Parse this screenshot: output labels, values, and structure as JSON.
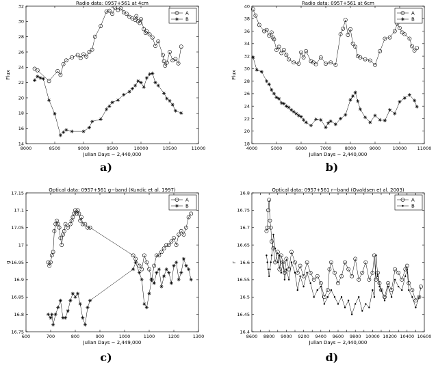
{
  "chart_data": [
    {
      "type": "line",
      "letter": "a)",
      "title": "Radio data: 0957+561 at 4cm",
      "xlabel": "Julian Days − 2,440,000",
      "ylabel": "Flux",
      "xlim": [
        8000,
        11000
      ],
      "ylim": [
        14,
        32
      ],
      "xticks": [
        8000,
        8500,
        9000,
        9500,
        10000,
        10500,
        11000
      ],
      "yticks": [
        14,
        16,
        18,
        20,
        22,
        24,
        26,
        28,
        30,
        32
      ],
      "grid": false,
      "legend_position": "top-right",
      "series": [
        {
          "name": "A",
          "marker": "circle",
          "x": [
            8150,
            8200,
            8400,
            8550,
            8600,
            8650,
            8700,
            8800,
            8900,
            8950,
            9000,
            9050,
            9100,
            9150,
            9200,
            9300,
            9400,
            9450,
            9500,
            9550,
            9600,
            9650,
            9700,
            9750,
            9800,
            9850,
            9900,
            9920,
            9950,
            9980,
            10000,
            10050,
            10080,
            10100,
            10150,
            10200,
            10250,
            10300,
            10380,
            10400,
            10420,
            10450,
            10500,
            10550,
            10600,
            10650,
            10700
          ],
          "y": [
            23.8,
            23.6,
            22.2,
            23.5,
            23.0,
            24.4,
            24.9,
            25.3,
            25.6,
            25.2,
            25.7,
            25.4,
            26.0,
            26.3,
            28.0,
            29.4,
            31.3,
            31.4,
            31.0,
            31.8,
            31.5,
            31.7,
            31.2,
            31.0,
            30.6,
            30.4,
            30.2,
            30.7,
            30.0,
            29.8,
            30.3,
            29.0,
            28.5,
            28.7,
            28.3,
            27.9,
            26.8,
            27.4,
            25.6,
            24.8,
            24.2,
            24.6,
            26.0,
            24.9,
            25.1,
            24.5,
            26.7
          ]
        },
        {
          "name": "B",
          "marker": "star",
          "x": [
            8150,
            8200,
            8250,
            8300,
            8400,
            8500,
            8600,
            8650,
            8700,
            8800,
            9000,
            9100,
            9150,
            9300,
            9400,
            9450,
            9500,
            9600,
            9700,
            9800,
            9850,
            9900,
            9950,
            10000,
            10050,
            10100,
            10150,
            10200,
            10250,
            10300,
            10400,
            10450,
            10500,
            10550,
            10600,
            10700
          ],
          "y": [
            22.3,
            22.8,
            22.6,
            22.5,
            19.7,
            17.9,
            15.1,
            15.5,
            15.8,
            15.6,
            15.6,
            16.1,
            16.9,
            17.2,
            18.5,
            18.9,
            19.4,
            19.7,
            20.4,
            20.8,
            21.2,
            21.6,
            22.2,
            22.0,
            21.4,
            22.6,
            23.1,
            23.2,
            22.0,
            21.6,
            20.6,
            19.9,
            19.6,
            19.1,
            18.3,
            18.0
          ]
        }
      ]
    },
    {
      "type": "line",
      "letter": "b)",
      "title": "Radio data: 0957+561 at 6cm",
      "xlabel": "Julian Days − 2,440,000",
      "ylabel": "Flux",
      "xlim": [
        4000,
        11000
      ],
      "ylim": [
        18,
        40
      ],
      "xticks": [
        4000,
        5000,
        6000,
        7000,
        8000,
        9000,
        10000,
        11000
      ],
      "yticks": [
        18,
        20,
        22,
        24,
        26,
        28,
        30,
        32,
        34,
        36,
        38,
        40
      ],
      "grid": false,
      "legend_position": "top-right",
      "series": [
        {
          "name": "A",
          "marker": "circle",
          "x": [
            4050,
            4150,
            4300,
            4500,
            4600,
            4700,
            4800,
            4850,
            4900,
            5000,
            5100,
            5200,
            5300,
            5400,
            5500,
            5700,
            5900,
            6000,
            6100,
            6200,
            6400,
            6500,
            6600,
            6800,
            7000,
            7200,
            7400,
            7600,
            7700,
            7800,
            7900,
            8000,
            8100,
            8200,
            8300,
            8400,
            8600,
            8800,
            9000,
            9200,
            9400,
            9600,
            9800,
            9900,
            10000,
            10100,
            10200,
            10400,
            10500,
            10600,
            10700
          ],
          "y": [
            39.5,
            38.5,
            37.0,
            36.0,
            36.2,
            35.3,
            35.8,
            35.0,
            34.7,
            33.0,
            33.5,
            32.5,
            33.0,
            32.2,
            31.5,
            31.0,
            30.8,
            32.6,
            31.8,
            32.8,
            31.2,
            31.0,
            30.7,
            31.8,
            30.8,
            31.0,
            30.6,
            35.5,
            36.4,
            37.8,
            35.4,
            36.3,
            34.0,
            33.5,
            32.0,
            31.8,
            31.5,
            31.3,
            30.6,
            32.8,
            34.8,
            35.0,
            36.0,
            37.2,
            36.5,
            35.8,
            35.5,
            34.8,
            33.6,
            32.9,
            33.3
          ]
        },
        {
          "name": "B",
          "marker": "star",
          "x": [
            4050,
            4200,
            4400,
            4600,
            4700,
            4800,
            4900,
            5000,
            5100,
            5200,
            5300,
            5400,
            5500,
            5600,
            5700,
            5800,
            5900,
            6000,
            6100,
            6200,
            6400,
            6600,
            6800,
            7000,
            7100,
            7200,
            7400,
            7600,
            7800,
            8000,
            8100,
            8200,
            8300,
            8400,
            8600,
            8800,
            9000,
            9200,
            9400,
            9600,
            9800,
            10000,
            10200,
            10400,
            10600,
            10700
          ],
          "y": [
            31.8,
            29.8,
            29.5,
            28.0,
            27.5,
            26.6,
            26.0,
            25.4,
            25.2,
            24.5,
            24.4,
            24.0,
            23.8,
            23.4,
            23.1,
            22.8,
            22.5,
            22.3,
            21.8,
            21.4,
            20.9,
            21.9,
            21.8,
            20.6,
            21.3,
            21.6,
            21.1,
            22.0,
            22.6,
            25.0,
            25.6,
            26.2,
            24.8,
            23.5,
            22.2,
            21.4,
            22.5,
            21.8,
            21.7,
            23.4,
            22.8,
            24.7,
            25.3,
            25.8,
            24.9,
            23.9
          ]
        }
      ]
    },
    {
      "type": "line",
      "letter": "c)",
      "title": "Optical data: 0957+561 g−band  (Kundic et al. 1997)",
      "xlabel": "Julian Days − 2,449,000",
      "ylabel": "g",
      "xlim": [
        600,
        1300
      ],
      "ylim": [
        16.75,
        17.15
      ],
      "xticks": [
        600,
        700,
        800,
        900,
        1000,
        1100,
        1200,
        1300
      ],
      "yticks": [
        16.75,
        16.8,
        16.85,
        16.9,
        16.95,
        17,
        17.05,
        17.1,
        17.15
      ],
      "ytick_labels": [
        "16.75",
        "16.8",
        "16.85",
        "16.9",
        "16.95",
        "17",
        "17.05",
        "17.1",
        "17.15"
      ],
      "grid": false,
      "legend_position": "top-right",
      "series": [
        {
          "name": "A",
          "marker": "circle",
          "x": [
            690,
            695,
            700,
            705,
            710,
            715,
            720,
            725,
            730,
            735,
            740,
            745,
            750,
            755,
            760,
            770,
            780,
            785,
            790,
            795,
            800,
            805,
            810,
            815,
            820,
            825,
            830,
            840,
            850,
            860,
            1035,
            1045,
            1060,
            1070,
            1080,
            1090,
            1100,
            1110,
            1120,
            1130,
            1140,
            1150,
            1160,
            1170,
            1180,
            1190,
            1200,
            1210,
            1220,
            1230,
            1240,
            1250,
            1260,
            1270
          ],
          "y": [
            16.95,
            16.94,
            16.95,
            16.97,
            16.98,
            17.04,
            17.06,
            17.07,
            17.06,
            17.05,
            17.02,
            17.0,
            17.03,
            17.04,
            17.06,
            17.05,
            17.06,
            17.07,
            17.08,
            17.09,
            17.1,
            17.09,
            17.1,
            17.09,
            17.07,
            17.08,
            17.06,
            17.06,
            17.05,
            17.05,
            16.97,
            16.96,
            16.94,
            16.93,
            16.97,
            16.95,
            16.93,
            16.9,
            16.94,
            16.97,
            16.97,
            16.98,
            16.99,
            17.0,
            17.0,
            17.01,
            17.02,
            17.0,
            17.03,
            17.04,
            17.03,
            17.05,
            17.08,
            17.09
          ]
        },
        {
          "name": "B",
          "marker": "star",
          "x": [
            690,
            700,
            705,
            710,
            720,
            730,
            740,
            750,
            760,
            770,
            780,
            790,
            800,
            810,
            820,
            830,
            840,
            850,
            860,
            1035,
            1045,
            1060,
            1070,
            1080,
            1090,
            1100,
            1110,
            1120,
            1130,
            1140,
            1150,
            1160,
            1170,
            1180,
            1190,
            1200,
            1210,
            1220,
            1230,
            1240,
            1250,
            1260,
            1270
          ],
          "y": [
            16.8,
            16.79,
            16.8,
            16.77,
            16.8,
            16.82,
            16.84,
            16.79,
            16.79,
            16.81,
            16.84,
            16.86,
            16.85,
            16.86,
            16.83,
            16.79,
            16.77,
            16.82,
            16.84,
            16.93,
            16.95,
            16.92,
            16.9,
            16.83,
            16.82,
            16.86,
            16.9,
            16.89,
            16.92,
            16.93,
            16.88,
            16.91,
            16.93,
            16.92,
            16.89,
            16.94,
            16.95,
            16.9,
            16.92,
            16.96,
            16.94,
            16.93,
            16.9
          ]
        }
      ]
    },
    {
      "type": "line",
      "letter": "d)",
      "title": "Optical data: 0957+561 r−band  (Ovaldsen et al. 2003)",
      "xlabel": "Julian Days − 2,440,000",
      "ylabel": "r",
      "xlim": [
        8600,
        10600
      ],
      "ylim": [
        16.4,
        16.8
      ],
      "xticks": [
        8600,
        8700,
        8800,
        8900,
        9000,
        9100,
        9200,
        9300,
        9400,
        9500,
        9600,
        9700,
        9800,
        9900,
        10000,
        10100,
        10200,
        10300,
        10400,
        10500,
        10600
      ],
      "xtick_labels": [
        "8600",
        "",
        "8800",
        "",
        "9000",
        "",
        "9200",
        "",
        "9400",
        "",
        "9600",
        "",
        "9800",
        "",
        "10000",
        "",
        "10200",
        "",
        "10400",
        "",
        "10600"
      ],
      "yticks": [
        16.4,
        16.45,
        16.5,
        16.55,
        16.6,
        16.65,
        16.7,
        16.75,
        16.8
      ],
      "grid": false,
      "legend_position": "top-right",
      "series": [
        {
          "name": "A",
          "marker": "circle",
          "x": [
            8770,
            8780,
            8790,
            8800,
            8810,
            8820,
            8830,
            8850,
            8870,
            8900,
            8920,
            8940,
            8960,
            8980,
            9000,
            9030,
            9060,
            9100,
            9130,
            9160,
            9200,
            9240,
            9280,
            9320,
            9360,
            9400,
            9440,
            9480,
            9500,
            9520,
            9560,
            9600,
            9640,
            9680,
            9720,
            9760,
            9800,
            9840,
            9880,
            9920,
            9960,
            10000,
            10020,
            10040,
            10060,
            10080,
            10100,
            10140,
            10180,
            10220,
            10260,
            10300,
            10340,
            10380,
            10400,
            10420,
            10460,
            10500,
            10540,
            10560
          ],
          "y": [
            16.69,
            16.7,
            16.75,
            16.78,
            16.72,
            16.7,
            16.66,
            16.64,
            16.6,
            16.63,
            16.58,
            16.62,
            16.6,
            16.57,
            16.61,
            16.58,
            16.63,
            16.6,
            16.57,
            16.59,
            16.56,
            16.6,
            16.57,
            16.55,
            16.56,
            16.54,
            16.5,
            16.52,
            16.58,
            16.6,
            16.57,
            16.54,
            16.56,
            16.6,
            16.58,
            16.56,
            16.61,
            16.55,
            16.57,
            16.6,
            16.55,
            16.57,
            16.62,
            16.55,
            16.57,
            16.54,
            16.52,
            16.5,
            16.54,
            16.52,
            16.58,
            16.57,
            16.55,
            16.58,
            16.59,
            16.54,
            16.52,
            16.49,
            16.5,
            16.53
          ]
        },
        {
          "name": "B",
          "marker": "dot",
          "x": [
            8770,
            8780,
            8790,
            8800,
            8810,
            8820,
            8830,
            8850,
            8870,
            8900,
            8920,
            8940,
            8960,
            8980,
            9000,
            9030,
            9060,
            9100,
            9130,
            9160,
            9200,
            9240,
            9280,
            9320,
            9360,
            9400,
            9440,
            9480,
            9520,
            9560,
            9600,
            9640,
            9680,
            9720,
            9760,
            9800,
            9840,
            9880,
            9920,
            9960,
            10000,
            10020,
            10040,
            10060,
            10080,
            10100,
            10140,
            10180,
            10220,
            10260,
            10300,
            10340,
            10380,
            10400,
            10420,
            10460,
            10500,
            10540
          ],
          "y": [
            16.62,
            16.6,
            16.58,
            16.56,
            16.58,
            16.6,
            16.62,
            16.68,
            16.64,
            16.6,
            16.62,
            16.57,
            16.6,
            16.55,
            16.58,
            16.55,
            16.6,
            16.57,
            16.52,
            16.56,
            16.53,
            16.57,
            16.54,
            16.5,
            16.52,
            16.53,
            16.48,
            16.5,
            16.52,
            16.5,
            16.48,
            16.5,
            16.47,
            16.49,
            16.45,
            16.48,
            16.5,
            16.46,
            16.48,
            16.47,
            16.52,
            16.5,
            16.62,
            16.56,
            16.53,
            16.52,
            16.49,
            16.53,
            16.5,
            16.55,
            16.53,
            16.52,
            16.56,
            16.58,
            16.52,
            16.5,
            16.47,
            16.5
          ]
        }
      ]
    }
  ]
}
